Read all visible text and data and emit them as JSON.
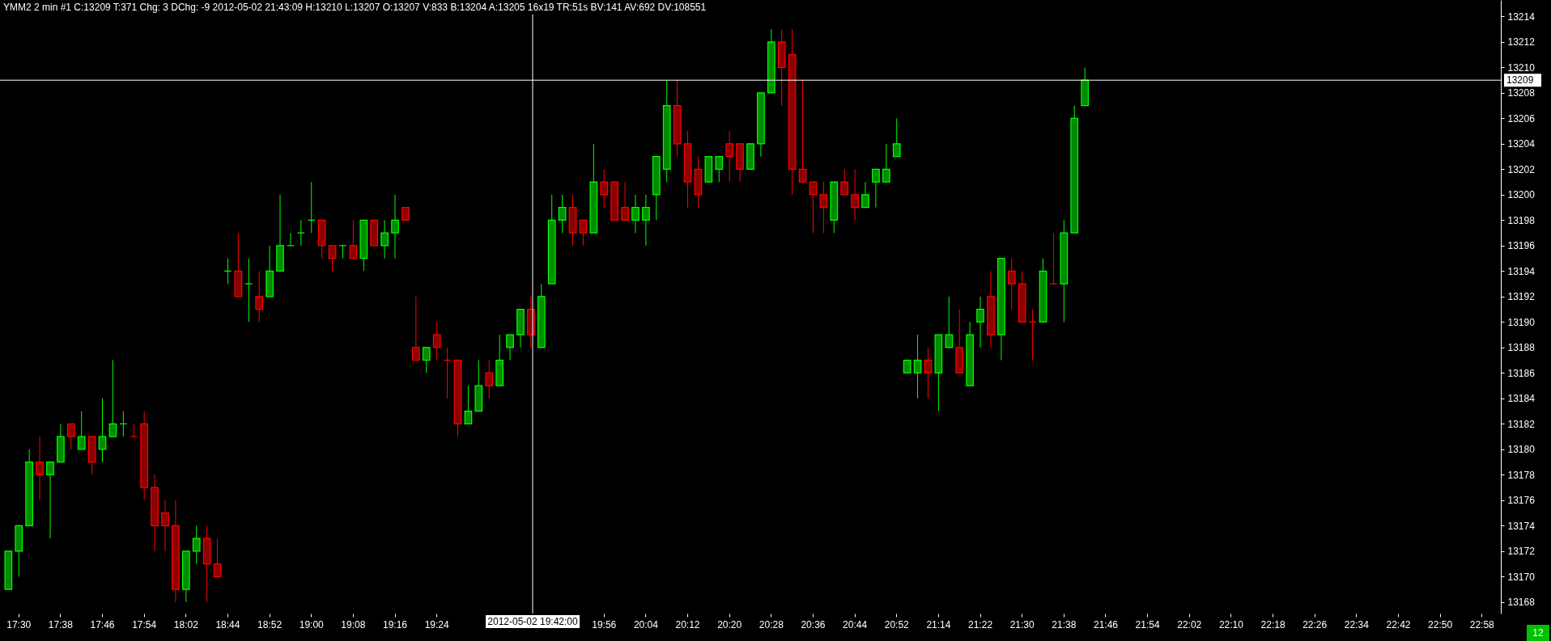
{
  "chart_data": {
    "type": "candlestick",
    "title": "YMM2  2 min   #1 C:13209 T:371 Chg: 3 DChg: -9 2012-05-02 21:43:09 H:13210 L:13207 O:13207 V:833 B:13204 A:13205 16x19 TR:51s BV:141 AV:692 DV:108551",
    "categories": [
      null,
      "17:30",
      null,
      null,
      null,
      "17:38",
      null,
      null,
      null,
      "17:46",
      null,
      null,
      null,
      "17:54",
      null,
      null,
      null,
      "18:02",
      null,
      null,
      null,
      "18:44",
      null,
      null,
      null,
      "18:52",
      null,
      null,
      null,
      "19:00",
      null,
      null,
      null,
      "19:08",
      null,
      null,
      null,
      "19:16",
      null,
      null,
      null,
      "19:24",
      null,
      null,
      null,
      null,
      null,
      null,
      null,
      null,
      null,
      null,
      null,
      null,
      null,
      null,
      null,
      "19:56",
      null,
      null,
      null,
      "20:04",
      null,
      null,
      null,
      "20:12",
      null,
      null,
      null,
      "20:20",
      null,
      null,
      null,
      "20:28",
      null,
      null,
      null,
      "20:36",
      null,
      null,
      null,
      "20:44",
      null,
      null,
      null,
      "20:52",
      null,
      null,
      null,
      "21:14",
      null,
      null,
      null,
      "21:22",
      null,
      null,
      null,
      "21:30",
      null,
      null,
      null,
      "21:38",
      null,
      null,
      null,
      "21:46",
      null,
      null,
      null,
      "21:54",
      null,
      null,
      null,
      "22:02",
      null,
      null,
      null,
      "22:10",
      null,
      null,
      null,
      "22:18",
      null,
      null,
      null,
      "22:26",
      null,
      null,
      null,
      "22:34",
      null,
      null,
      null,
      "22:42",
      null,
      null,
      null,
      "22:50",
      null,
      null,
      null,
      "22:58",
      null
    ],
    "ohlc": [
      [
        13169,
        13172,
        13169,
        13172
      ],
      [
        13172,
        13174,
        13170,
        13174
      ],
      [
        13174,
        13180,
        13174,
        13179
      ],
      [
        13179,
        13181,
        13176,
        13178
      ],
      [
        13178,
        13179,
        13173,
        13179
      ],
      [
        13179,
        13182,
        13179,
        13181
      ],
      [
        13182,
        13182,
        13180,
        13181
      ],
      [
        13180,
        13183,
        13180,
        13181
      ],
      [
        13181,
        13181,
        13178,
        13179
      ],
      [
        13180,
        13184,
        13179,
        13181
      ],
      [
        13181,
        13187,
        13181,
        13182
      ],
      [
        13182,
        13183,
        13181,
        13182
      ],
      [
        13181,
        13182,
        13181,
        13181
      ],
      [
        13182,
        13183,
        13176,
        13177
      ],
      [
        13177,
        13178,
        13172,
        13174
      ],
      [
        13175,
        13176,
        13172,
        13174
      ],
      [
        13174,
        13176,
        13168,
        13169
      ],
      [
        13169,
        13172,
        13168,
        13172
      ],
      [
        13172,
        13174,
        13171,
        13173
      ],
      [
        13173,
        13174,
        13168,
        13171
      ],
      [
        13171,
        13173,
        13170,
        13170
      ],
      [
        13194,
        13195,
        13193,
        13194
      ],
      [
        13194,
        13197,
        13192,
        13192
      ],
      [
        13193,
        13195,
        13190,
        13193
      ],
      [
        13192,
        13194,
        13190,
        13191
      ],
      [
        13192,
        13196,
        13192,
        13194
      ],
      [
        13194,
        13200,
        13194,
        13196
      ],
      [
        13196,
        13197,
        13196,
        13196
      ],
      [
        13197,
        13198,
        13196,
        13197
      ],
      [
        13198,
        13201,
        13197,
        13198
      ],
      [
        13198,
        13198,
        13195,
        13196
      ],
      [
        13196,
        13196,
        13194,
        13195
      ],
      [
        13196,
        13196,
        13195,
        13196
      ],
      [
        13196,
        13198,
        13195,
        13195
      ],
      [
        13195,
        13198,
        13194,
        13198
      ],
      [
        13198,
        13198,
        13196,
        13196
      ],
      [
        13196,
        13198,
        13195,
        13197
      ],
      [
        13197,
        13200,
        13195,
        13198
      ],
      [
        13199,
        13199,
        13198,
        13198
      ],
      [
        13188,
        13192,
        13187,
        13187
      ],
      [
        13187,
        13188,
        13186,
        13188
      ],
      [
        13189,
        13190,
        13187,
        13188
      ],
      [
        13187,
        13188,
        13184,
        13187
      ],
      [
        13187,
        13187,
        13181,
        13182
      ],
      [
        13182,
        13185,
        13182,
        13183
      ],
      [
        13183,
        13187,
        13183,
        13185
      ],
      [
        13186,
        13187,
        13184,
        13185
      ],
      [
        13185,
        13189,
        13185,
        13187
      ],
      [
        13188,
        13189,
        13187,
        13189
      ],
      [
        13189,
        13191,
        13188,
        13191
      ],
      [
        13191,
        13192,
        13188,
        13189
      ],
      [
        13188,
        13193,
        13188,
        13192
      ],
      [
        13193,
        13200,
        13193,
        13198
      ],
      [
        13198,
        13200,
        13197,
        13199
      ],
      [
        13199,
        13200,
        13196,
        13197
      ],
      [
        13198,
        13198,
        13196,
        13197
      ],
      [
        13197,
        13204,
        13197,
        13201
      ],
      [
        13201,
        13202,
        13199,
        13200
      ],
      [
        13201,
        13201,
        13198,
        13198
      ],
      [
        13199,
        13201,
        13198,
        13198
      ],
      [
        13198,
        13200,
        13197,
        13199
      ],
      [
        13198,
        13200,
        13196,
        13199
      ],
      [
        13200,
        13203,
        13198,
        13203
      ],
      [
        13202,
        13209,
        13201,
        13207
      ],
      [
        13207,
        13209,
        13203,
        13204
      ],
      [
        13204,
        13205,
        13199,
        13201
      ],
      [
        13202,
        13203,
        13199,
        13200
      ],
      [
        13201,
        13203,
        13201,
        13203
      ],
      [
        13202,
        13203,
        13201,
        13203
      ],
      [
        13204,
        13205,
        13201,
        13203
      ],
      [
        13204,
        13204,
        13201,
        13202
      ],
      [
        13202,
        13204,
        13202,
        13204
      ],
      [
        13204,
        13208,
        13203,
        13208
      ],
      [
        13208,
        13213,
        13208,
        13212
      ],
      [
        13212,
        13213,
        13207,
        13210
      ],
      [
        13211,
        13213,
        13200,
        13202
      ],
      [
        13202,
        13209,
        13201,
        13201
      ],
      [
        13201,
        13201,
        13197,
        13200
      ],
      [
        13200,
        13201,
        13197,
        13199
      ],
      [
        13198,
        13201,
        13197,
        13201
      ],
      [
        13201,
        13202,
        13200,
        13200
      ],
      [
        13200,
        13202,
        13198,
        13199
      ],
      [
        13199,
        13201,
        13199,
        13200
      ],
      [
        13201,
        13202,
        13199,
        13202
      ],
      [
        13201,
        13204,
        13201,
        13202
      ],
      [
        13203,
        13206,
        13203,
        13204
      ],
      [
        13186,
        13187,
        13186,
        13187
      ],
      [
        13186,
        13189,
        13184,
        13187
      ],
      [
        13187,
        13188,
        13184,
        13186
      ],
      [
        13186,
        13189,
        13183,
        13189
      ],
      [
        13188,
        13192,
        13188,
        13189
      ],
      [
        13188,
        13191,
        13186,
        13186
      ],
      [
        13185,
        13190,
        13185,
        13189
      ],
      [
        13190,
        13192,
        13188,
        13191
      ],
      [
        13192,
        13194,
        13188,
        13189
      ],
      [
        13189,
        13195,
        13187,
        13195
      ],
      [
        13194,
        13195,
        13191,
        13193
      ],
      [
        13193,
        13194,
        13190,
        13190
      ],
      [
        13190,
        13191,
        13187,
        13190
      ],
      [
        13190,
        13195,
        13190,
        13194
      ],
      [
        13193,
        13197,
        13193,
        13193
      ],
      [
        13193,
        13198,
        13190,
        13197
      ],
      [
        13197,
        13207,
        13197,
        13206
      ],
      [
        13207,
        13210,
        13207,
        13209
      ],
      null,
      null,
      null,
      null,
      null,
      null,
      null,
      null,
      null,
      null,
      null,
      null,
      null,
      null,
      null,
      null,
      null,
      null,
      null,
      null,
      null,
      null,
      null,
      null,
      null,
      null,
      null,
      null,
      null,
      null,
      null,
      null,
      null,
      null,
      null,
      null,
      null,
      null,
      null
    ],
    "colors": [
      "#00ff00",
      "#00ff00",
      "#00ff00",
      "#ff0000",
      "#00ff00",
      "#00ff00",
      "#ff0000",
      "#00ff00",
      "#ff0000",
      "#00ff00",
      "#00ff00",
      "#00ff00",
      "#ff0000",
      "#ff0000",
      "#ff0000",
      "#ff0000",
      "#ff0000",
      "#00ff00",
      "#00ff00",
      "#ff0000",
      "#ff0000",
      "#00ff00",
      "#ff0000",
      "#00ff00",
      "#ff0000",
      "#00ff00",
      "#00ff00",
      "#00ff00",
      "#00ff00",
      "#00ff00",
      "#ff0000",
      "#ff0000",
      "#00ff00",
      "#ff0000",
      "#00ff00",
      "#ff0000",
      "#00ff00",
      "#00ff00",
      "#ff0000",
      "#ff0000",
      "#00ff00",
      "#ff0000",
      "#ff0000",
      "#ff0000",
      "#00ff00",
      "#00ff00",
      "#ff0000",
      "#00ff00",
      "#00ff00",
      "#00ff00",
      "#ff0000",
      "#00ff00",
      "#00ff00",
      "#00ff00",
      "#ff0000",
      "#ff0000",
      "#00ff00",
      "#ff0000",
      "#ff0000",
      "#ff0000",
      "#00ff00",
      "#00ff00",
      "#00ff00",
      "#00ff00",
      "#ff0000",
      "#ff0000",
      "#ff0000",
      "#00ff00",
      "#00ff00",
      "#ff0000",
      "#ff0000",
      "#00ff00",
      "#00ff00",
      "#00ff00",
      "#ff0000",
      "#ff0000",
      "#ff0000",
      "#ff0000",
      "#ff0000",
      "#00ff00",
      "#ff0000",
      "#ff0000",
      "#00ff00",
      "#00ff00",
      "#00ff00",
      "#00ff00",
      "#00ff00",
      "#00ff00",
      "#ff0000",
      "#00ff00",
      "#00ff00",
      "#ff0000",
      "#00ff00",
      "#00ff00",
      "#ff0000",
      "#00ff00",
      "#ff0000",
      "#ff0000",
      "#ff0000",
      "#00ff00",
      "#ff0000",
      "#00ff00",
      "#00ff00",
      "#00ff00",
      null,
      null,
      null,
      null,
      null,
      null,
      null,
      null,
      null,
      null,
      null,
      null,
      null,
      null,
      null,
      null,
      null,
      null,
      null,
      null,
      null,
      null,
      null,
      null,
      null,
      null,
      null,
      null,
      null,
      null,
      null,
      null,
      null,
      null,
      null,
      null,
      null,
      null,
      null
    ],
    "ylim": [
      13167.1,
      13215.3
    ],
    "yticks": [
      13168,
      13170,
      13172,
      13174,
      13176,
      13178,
      13180,
      13182,
      13184,
      13186,
      13188,
      13190,
      13192,
      13194,
      13196,
      13198,
      13200,
      13202,
      13204,
      13206,
      13208,
      13210,
      13212,
      13214
    ],
    "ref_lines": [
      {
        "axis": "y",
        "value": 13209,
        "label": "13209",
        "color": "#ffffff"
      }
    ],
    "annotations": [
      "2012-05-02 19:42:00",
      "12"
    ]
  }
}
